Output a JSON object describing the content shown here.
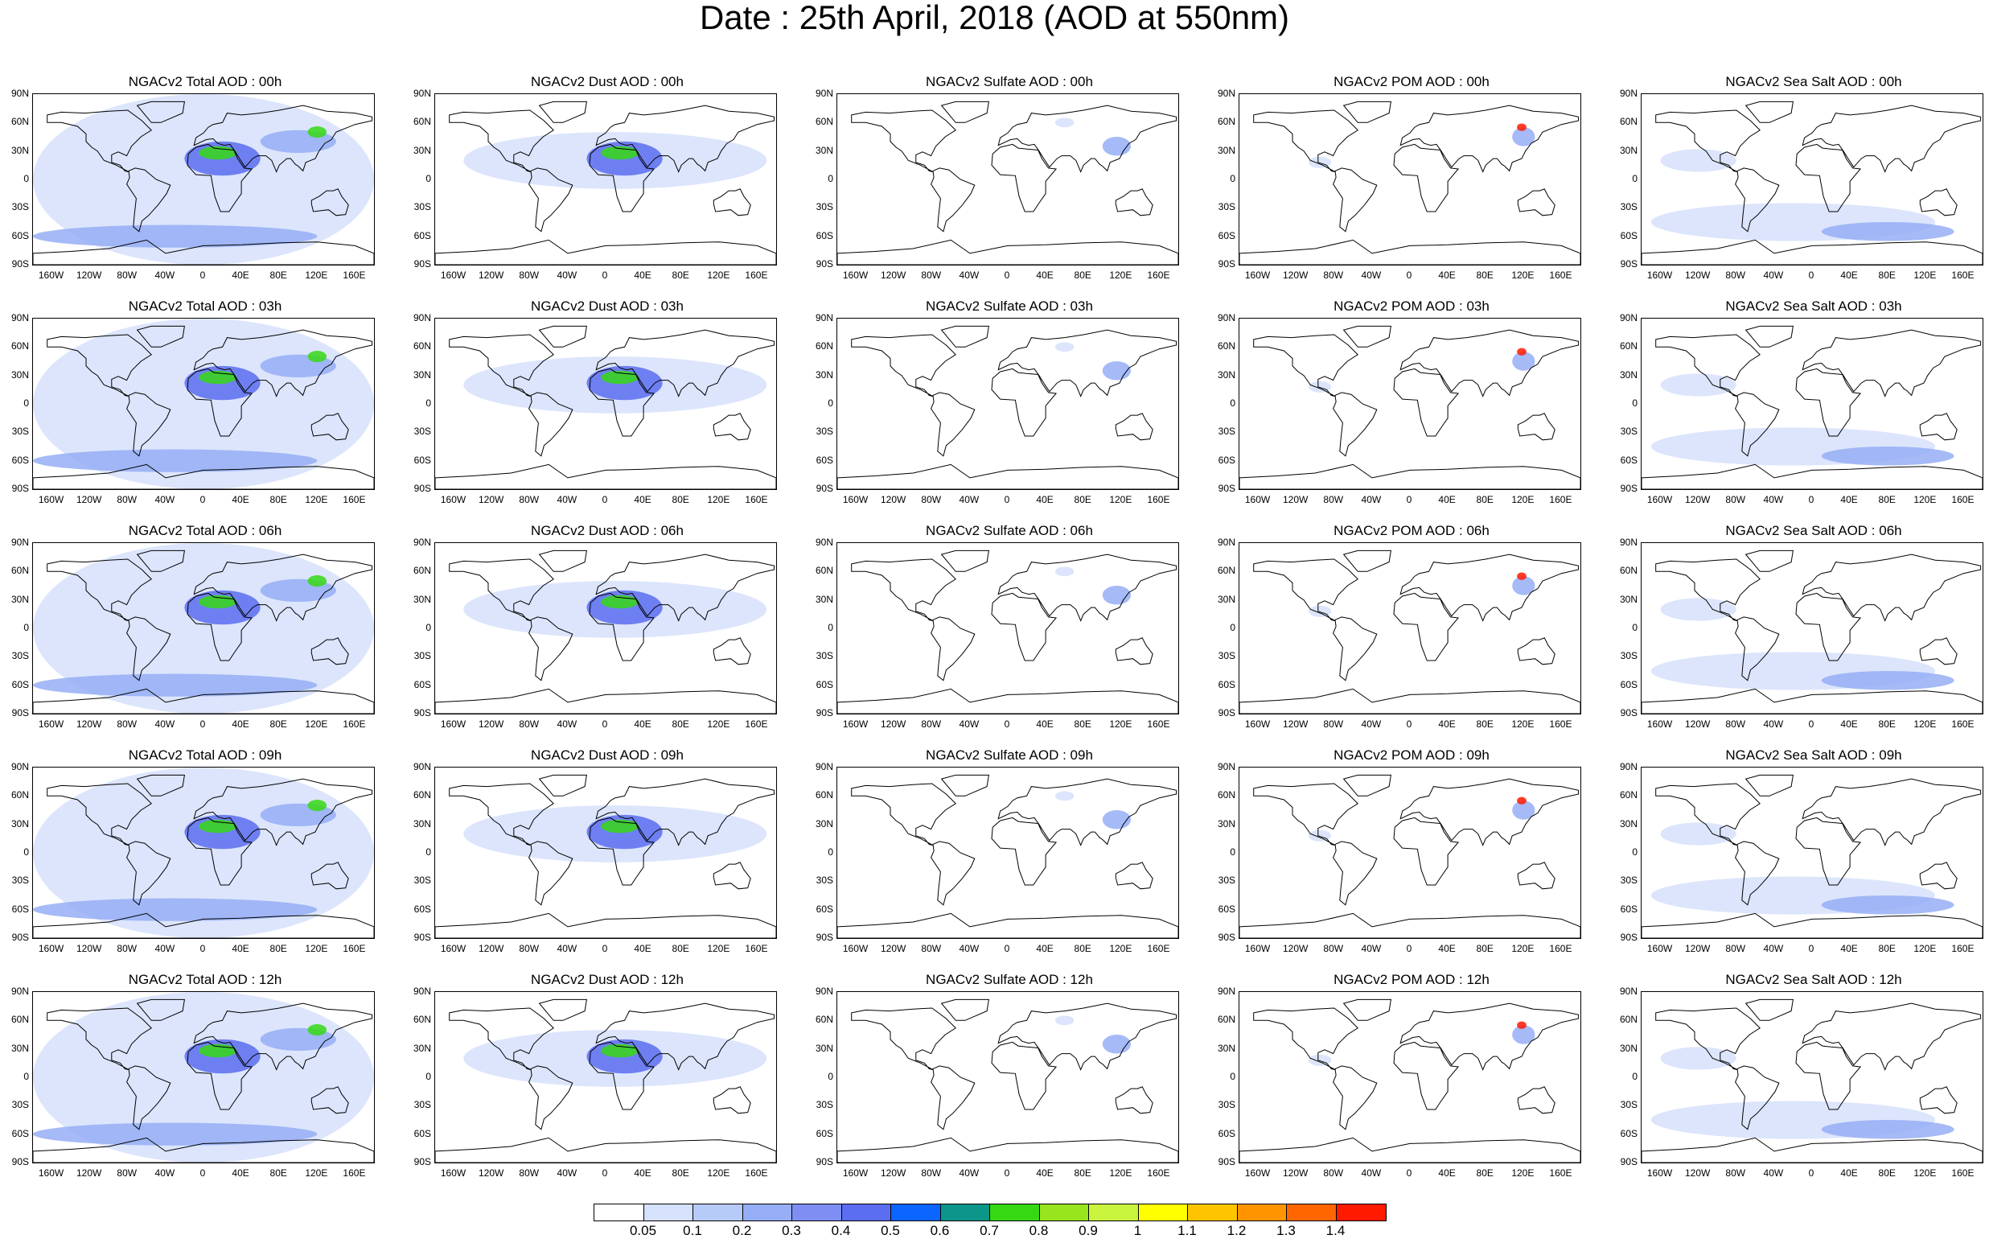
{
  "figure": {
    "title": "Date : 25th April, 2018 (AOD at 550nm)"
  },
  "species": [
    {
      "key": "total",
      "label": "NGACv2 Total AOD",
      "level": 0.22
    },
    {
      "key": "dust",
      "label": "NGACv2 Dust AOD",
      "level": 0.2
    },
    {
      "key": "sulfate",
      "label": "NGACv2 Sulfate AOD",
      "level": 0.05
    },
    {
      "key": "pom",
      "label": "NGACv2 POM AOD",
      "level": 0.06
    },
    {
      "key": "seasalt",
      "label": "NGACv2 Sea Salt AOD",
      "level": 0.12
    }
  ],
  "panel_titles": [
    [
      "NGACv2 Total AOD : 00h",
      "NGACv2 Dust AOD : 00h",
      "NGACv2 Sulfate AOD : 00h",
      "NGACv2 POM AOD : 00h",
      "NGACv2 Sea Salt AOD : 00h"
    ],
    [
      "NGACv2 Total AOD : 03h",
      "NGACv2 Dust AOD : 03h",
      "NGACv2 Sulfate AOD : 03h",
      "NGACv2 POM AOD : 03h",
      "NGACv2 Sea Salt AOD : 03h"
    ],
    [
      "NGACv2 Total AOD : 06h",
      "NGACv2 Dust AOD : 06h",
      "NGACv2 Sulfate AOD : 06h",
      "NGACv2 POM AOD : 06h",
      "NGACv2 Sea Salt AOD : 06h"
    ],
    [
      "NGACv2 Total AOD : 09h",
      "NGACv2 Dust AOD : 09h",
      "NGACv2 Sulfate AOD : 09h",
      "NGACv2 POM AOD : 09h",
      "NGACv2 Sea Salt  AOD : 09h"
    ],
    [
      "NGACv2 Total AOD  : 12h",
      "NGACv2 Dust AOD : 12h",
      "NGACv2 Sulfate AOD : 12h",
      "NGACv2 POM  AOD : 12h",
      "NGACv2 Sea Salt  AOD : 12h"
    ]
  ],
  "axes": {
    "lat_ticks": [
      "90N",
      "60N",
      "30N",
      "0",
      "30S",
      "60S",
      "90S"
    ],
    "lon_ticks": [
      "160W",
      "120W",
      "80W",
      "40W",
      "0",
      "40E",
      "80E",
      "120E",
      "160E"
    ],
    "lat_values": [
      90,
      60,
      30,
      0,
      -30,
      -60,
      -90
    ],
    "lon_values": [
      -160,
      -120,
      -80,
      -40,
      0,
      40,
      80,
      120,
      160
    ]
  },
  "colorbar": {
    "labels": [
      "0.05",
      "0.1",
      "0.2",
      "0.3",
      "0.4",
      "0.5",
      "0.6",
      "0.7",
      "0.8",
      "0.9",
      "1",
      "1.1",
      "1.2",
      "1.3",
      "1.4"
    ],
    "colors": [
      "#ffffff",
      "#d6e1fb",
      "#b6cbf8",
      "#95aef5",
      "#7e8ef3",
      "#5b6df0",
      "#0a66ff",
      "#0c968a",
      "#36d814",
      "#97e51d",
      "#c8f43d",
      "#ffff00",
      "#ffc400",
      "#ff9400",
      "#ff6600",
      "#ff1a00"
    ]
  },
  "colors": {
    "land_outline": "#000000",
    "low_aod": "#d6e1fb",
    "mid_aod": "#95aef5",
    "high_aod": "#5b6df0",
    "peak_green": "#36d814",
    "peak_red": "#ff1a00"
  }
}
